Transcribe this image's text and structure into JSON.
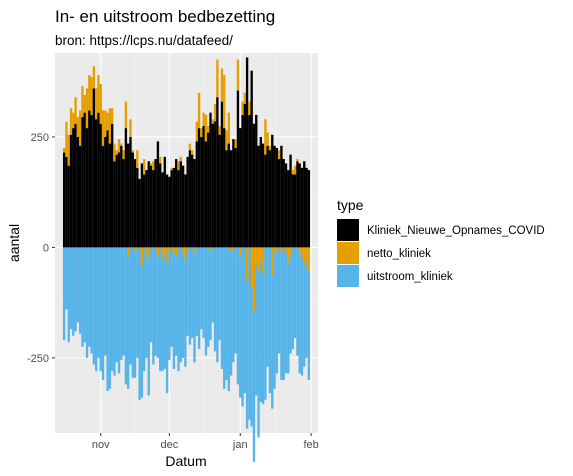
{
  "chart_data": {
    "type": "bar",
    "title": "In- en uitstroom bedbezetting",
    "subtitle": "bron: https://lcps.nu/datafeed/",
    "xlabel": "Datum",
    "ylabel": "aantal",
    "x_start": "2020-10-16",
    "x_end": "2021-01-31",
    "xlim": [
      "2020-10-12",
      "2021-02-04"
    ],
    "ylim": [
      -420,
      440
    ],
    "x_ticks": [
      {
        "date": "2020-11-01",
        "label": "nov"
      },
      {
        "date": "2020-12-01",
        "label": "dec"
      },
      {
        "date": "2021-01-01",
        "label": "jan"
      },
      {
        "date": "2021-02-01",
        "label": "feb"
      }
    ],
    "y_ticks": [
      {
        "value": -250,
        "label": "-250"
      },
      {
        "value": 0,
        "label": "0"
      },
      {
        "value": 250,
        "label": "250"
      }
    ],
    "legend": {
      "title": "type",
      "position": "right",
      "entries": [
        {
          "label": "Kliniek_Nieuwe_Opnames_COVID",
          "color": "#000000"
        },
        {
          "label": "netto_kliniek",
          "color": "#E69F00"
        },
        {
          "label": "uitstroom_kliniek",
          "color": "#56B4E9"
        }
      ]
    },
    "series": [
      {
        "name": "Kliniek_Nieuwe_Opnames_COVID",
        "color": "#000000",
        "values": [
          215,
          205,
          185,
          255,
          270,
          280,
          250,
          230,
          295,
          305,
          270,
          310,
          300,
          360,
          290,
          305,
          280,
          230,
          250,
          265,
          235,
          280,
          195,
          210,
          215,
          230,
          200,
          270,
          235,
          250,
          215,
          200,
          180,
          155,
          190,
          165,
          175,
          195,
          185,
          175,
          200,
          240,
          190,
          170,
          205,
          165,
          160,
          175,
          180,
          200,
          175,
          195,
          185,
          165,
          205,
          220,
          210,
          200,
          240,
          270,
          250,
          275,
          240,
          260,
          305,
          280,
          285,
          340,
          255,
          330,
          270,
          220,
          235,
          220,
          245,
          225,
          355,
          270,
          300,
          325,
          430,
          300,
          400,
          280,
          300,
          230,
          250,
          235,
          210,
          230,
          220,
          255,
          230,
          225,
          200,
          230,
          200,
          190,
          175,
          210,
          165,
          165,
          195,
          190,
          180,
          195,
          180,
          175
        ]
      },
      {
        "name": "netto_kliniek",
        "color": "#E69F00",
        "values": [
          10,
          80,
          70,
          60,
          35,
          60,
          45,
          80,
          70,
          40,
          90,
          80,
          85,
          50,
          70,
          85,
          90,
          80,
          60,
          40,
          80,
          35,
          40,
          10,
          30,
          5,
          20,
          60,
          -20,
          40,
          5,
          -10,
          40,
          -5,
          -40,
          35,
          -15,
          -25,
          5,
          20,
          -5,
          -20,
          15,
          -25,
          -10,
          -35,
          -10,
          5,
          -15,
          -20,
          20,
          10,
          -10,
          -25,
          -5,
          15,
          10,
          -15,
          45,
          80,
          20,
          30,
          60,
          15,
          -10,
          10,
          40,
          85,
          20,
          75,
          120,
          45,
          70,
          -10,
          -5,
          20,
          70,
          -20,
          30,
          25,
          -75,
          30,
          -90,
          -145,
          -40,
          -55,
          -30,
          -60,
          80,
          30,
          10,
          -65,
          -5,
          -15,
          20,
          -10,
          0,
          -15,
          -35,
          -20,
          10,
          20,
          5,
          -10,
          -25,
          -40,
          -30,
          -55
        ]
      },
      {
        "name": "uitstroom_kliniek",
        "color": "#56B4E9",
        "values": [
          -210,
          -140,
          -215,
          -185,
          -200,
          -190,
          -170,
          -195,
          -225,
          -215,
          -250,
          -225,
          -240,
          -265,
          -280,
          -250,
          -280,
          -300,
          -245,
          -325,
          -320,
          -280,
          -290,
          -260,
          -285,
          -255,
          -245,
          -310,
          -300,
          -265,
          -295,
          -285,
          -250,
          -340,
          -300,
          -280,
          -235,
          -310,
          -215,
          -265,
          -240,
          -230,
          -280,
          -255,
          -265,
          -295,
          -245,
          -225,
          -260,
          -225,
          -280,
          -260,
          -240,
          -245,
          -195,
          -220,
          -205,
          -245,
          -200,
          -230,
          -185,
          -205,
          -245,
          -225,
          -200,
          -170,
          -235,
          -260,
          -210,
          -275,
          -320,
          -300,
          -325,
          -280,
          -255,
          -240,
          -310,
          -320,
          -360,
          -330,
          -335,
          -390,
          -315,
          -340,
          -295,
          -375,
          -320,
          -295,
          -345,
          -270,
          -330,
          -300,
          -315,
          -270,
          -240,
          -290,
          -300,
          -270,
          -250,
          -220,
          -230,
          -205,
          -245,
          -275,
          -265,
          -230,
          -220,
          -245
        ]
      }
    ]
  }
}
